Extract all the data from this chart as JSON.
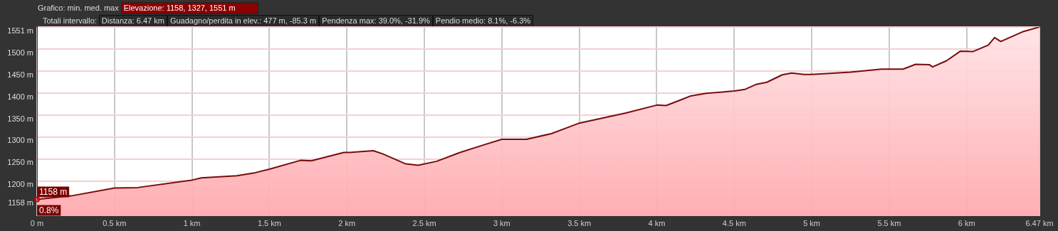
{
  "chart_data": {
    "type": "area",
    "x": [
      0,
      0.22,
      0.5,
      0.65,
      1.0,
      1.06,
      1.29,
      1.41,
      1.5,
      1.7,
      1.77,
      1.98,
      2.02,
      2.17,
      2.23,
      2.38,
      2.46,
      2.58,
      2.73,
      2.89,
      3.0,
      3.16,
      3.32,
      3.44,
      3.5,
      3.8,
      4.0,
      4.06,
      4.17,
      4.22,
      4.32,
      4.5,
      4.57,
      4.64,
      4.71,
      4.81,
      4.87,
      4.95,
      5.0,
      5.25,
      5.45,
      5.59,
      5.67,
      5.76,
      5.78,
      5.87,
      5.96,
      6.04,
      6.14,
      6.18,
      6.22,
      6.36,
      6.47
    ],
    "series": [
      {
        "color": "#7a0a0a",
        "values": [
          1158,
          1166,
          1184,
          1185,
          1202,
          1207,
          1212,
          1219,
          1227,
          1247,
          1246,
          1265,
          1265,
          1269,
          1262,
          1239,
          1236,
          1245,
          1265,
          1283,
          1295,
          1295,
          1308,
          1324,
          1332,
          1355,
          1373,
          1372,
          1387,
          1394,
          1400,
          1405,
          1409,
          1420,
          1425,
          1442,
          1446,
          1443,
          1443,
          1448,
          1455,
          1455,
          1466,
          1465,
          1460,
          1474,
          1496,
          1495,
          1510,
          1527,
          1518,
          1540,
          1551
        ]
      }
    ],
    "xlim": [
      0,
      6.47
    ],
    "xticks": [
      {
        "value": 0,
        "label": "0 m"
      },
      {
        "value": 0.5,
        "label": "0.5 km"
      },
      {
        "value": 1,
        "label": "1 km"
      },
      {
        "value": 1.5,
        "label": "1.5 km"
      },
      {
        "value": 2,
        "label": "2 km"
      },
      {
        "value": 2.5,
        "label": "2.5 km"
      },
      {
        "value": 3,
        "label": "3 km"
      },
      {
        "value": 3.5,
        "label": "3.5 km"
      },
      {
        "value": 4,
        "label": "4 km"
      },
      {
        "value": 4.5,
        "label": "4.5 km"
      },
      {
        "value": 5,
        "label": "5 km"
      },
      {
        "value": 5.5,
        "label": "5.5 km"
      },
      {
        "value": 6,
        "label": "6 km"
      },
      {
        "value": 6.47,
        "label": "6.47 km"
      }
    ],
    "ylim": [
      1120,
      1551
    ],
    "yticks": [
      {
        "value": 1158,
        "label": "1158 m"
      },
      {
        "value": 1200,
        "label": "1200 m"
      },
      {
        "value": 1250,
        "label": "1250 m"
      },
      {
        "value": 1300,
        "label": "1300 m"
      },
      {
        "value": 1350,
        "label": "1350 m"
      },
      {
        "value": 1400,
        "label": "1400 m"
      },
      {
        "value": 1450,
        "label": "1450 m"
      },
      {
        "value": 1500,
        "label": "1500 m"
      },
      {
        "value": 1551,
        "label": "1551 m"
      }
    ],
    "grid": true,
    "annotations": [
      "Grafico: min. med. max",
      "Elevazione: 1158, 1327, 1551 m",
      "Totali intervallo:",
      "Distanza: 6.47 km",
      "Guadagno/perdita in elev.: 477 m, -85.3 m",
      "Pendenza max: 39.0%, -31.9%",
      "Pendio medio: 8.1%, -6.3%",
      {
        "text": "1158 m",
        "x": 0,
        "y": 1158
      },
      {
        "text": "0.8%",
        "x": 0,
        "y": 1158
      }
    ]
  }
}
